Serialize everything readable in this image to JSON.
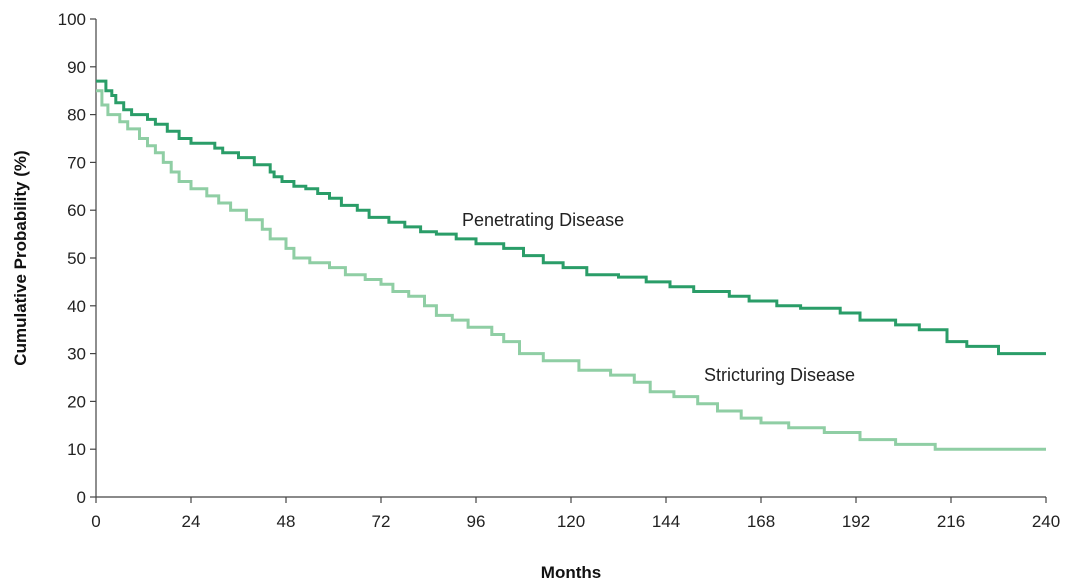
{
  "chart_data": {
    "type": "line",
    "step": true,
    "title": "",
    "xlabel": "Months",
    "ylabel": "Cumulative Probability (%)",
    "xlim": [
      0,
      240
    ],
    "ylim": [
      0,
      100
    ],
    "xticks": [
      0,
      24,
      48,
      72,
      96,
      120,
      144,
      168,
      192,
      216,
      240
    ],
    "yticks": [
      0,
      10,
      20,
      30,
      40,
      50,
      60,
      70,
      80,
      90,
      100
    ],
    "grid": false,
    "series": [
      {
        "name": "Penetrating Disease",
        "color": "#2a9d68",
        "points": [
          [
            0,
            87
          ],
          [
            2.5,
            85
          ],
          [
            4,
            84
          ],
          [
            5,
            82.5
          ],
          [
            7,
            81
          ],
          [
            9,
            80
          ],
          [
            13,
            79
          ],
          [
            15,
            78
          ],
          [
            18,
            76.5
          ],
          [
            21,
            75
          ],
          [
            24,
            74
          ],
          [
            30,
            73
          ],
          [
            32,
            72
          ],
          [
            36,
            71
          ],
          [
            40,
            69.5
          ],
          [
            44,
            68
          ],
          [
            45,
            67
          ],
          [
            47,
            66
          ],
          [
            50,
            65
          ],
          [
            53,
            64.5
          ],
          [
            56,
            63.5
          ],
          [
            59,
            62.5
          ],
          [
            62,
            61
          ],
          [
            66,
            60
          ],
          [
            69,
            58.5
          ],
          [
            74,
            57.5
          ],
          [
            78,
            56.5
          ],
          [
            82,
            55.5
          ],
          [
            86,
            55
          ],
          [
            91,
            54
          ],
          [
            96,
            53
          ],
          [
            103,
            52
          ],
          [
            108,
            50.5
          ],
          [
            113,
            49
          ],
          [
            118,
            48
          ],
          [
            124,
            46.5
          ],
          [
            132,
            46
          ],
          [
            139,
            45
          ],
          [
            145,
            44
          ],
          [
            151,
            43
          ],
          [
            160,
            42
          ],
          [
            165,
            41
          ],
          [
            172,
            40
          ],
          [
            178,
            39.5
          ],
          [
            188,
            38.5
          ],
          [
            193,
            37
          ],
          [
            202,
            36
          ],
          [
            208,
            35
          ],
          [
            215,
            32.5
          ],
          [
            220,
            31.5
          ],
          [
            228,
            30
          ],
          [
            240,
            30
          ]
        ]
      },
      {
        "name": "Stricturing Disease",
        "color": "#8fcea4",
        "points": [
          [
            0,
            85
          ],
          [
            1.5,
            82
          ],
          [
            3,
            80
          ],
          [
            6,
            78.5
          ],
          [
            8,
            77
          ],
          [
            11,
            75
          ],
          [
            13,
            73.5
          ],
          [
            15,
            72
          ],
          [
            17,
            70
          ],
          [
            19,
            68
          ],
          [
            21,
            66
          ],
          [
            24,
            64.5
          ],
          [
            28,
            63
          ],
          [
            31,
            61.5
          ],
          [
            34,
            60
          ],
          [
            38,
            58
          ],
          [
            42,
            56
          ],
          [
            44,
            54
          ],
          [
            48,
            52
          ],
          [
            50,
            50
          ],
          [
            54,
            49
          ],
          [
            59,
            48
          ],
          [
            63,
            46.5
          ],
          [
            68,
            45.5
          ],
          [
            72,
            44.5
          ],
          [
            75,
            43
          ],
          [
            79,
            42
          ],
          [
            83,
            40
          ],
          [
            86,
            38
          ],
          [
            90,
            37
          ],
          [
            94,
            35.5
          ],
          [
            100,
            34
          ],
          [
            103,
            32.5
          ],
          [
            107,
            30
          ],
          [
            113,
            28.5
          ],
          [
            122,
            26.5
          ],
          [
            130,
            25.5
          ],
          [
            136,
            24
          ],
          [
            140,
            22
          ],
          [
            146,
            21
          ],
          [
            152,
            19.5
          ],
          [
            157,
            18
          ],
          [
            163,
            16.5
          ],
          [
            168,
            15.5
          ],
          [
            175,
            14.5
          ],
          [
            184,
            13.5
          ],
          [
            193,
            12
          ],
          [
            202,
            11
          ],
          [
            212,
            10
          ],
          [
            240,
            10
          ]
        ]
      }
    ]
  }
}
